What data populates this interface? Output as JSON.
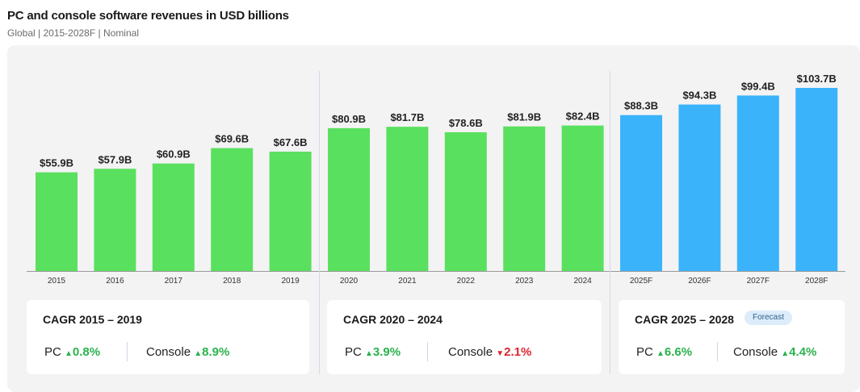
{
  "header": {
    "title": "PC and console software revenues in USD billions",
    "subtitle": "Global | 2015-2028F | Nominal"
  },
  "colors": {
    "actual": "#5ae05f",
    "forecast": "#3ab3fb",
    "up": "#2bb24c",
    "down": "#e0232e"
  },
  "chart_data": {
    "type": "bar",
    "title": "PC and console software revenues in USD billions",
    "subtitle": "Global | 2015-2028F | Nominal",
    "categories": [
      "2015",
      "2016",
      "2017",
      "2018",
      "2019",
      "2020",
      "2021",
      "2022",
      "2023",
      "2024",
      "2025F",
      "2026F",
      "2027F",
      "2028F"
    ],
    "values": [
      55.9,
      57.9,
      60.9,
      69.6,
      67.6,
      80.9,
      81.7,
      78.6,
      81.9,
      82.4,
      88.3,
      94.3,
      99.4,
      103.7
    ],
    "labels": [
      "$55.9B",
      "$57.9B",
      "$60.9B",
      "$69.6B",
      "$67.6B",
      "$80.9B",
      "$81.7B",
      "$78.6B",
      "$81.9B",
      "$82.4B",
      "$88.3B",
      "$94.3B",
      "$99.4B",
      "$103.7B"
    ],
    "forecast": [
      false,
      false,
      false,
      false,
      false,
      false,
      false,
      false,
      false,
      false,
      true,
      true,
      true,
      true
    ],
    "ylabel": "USD billions",
    "ylim": [
      0,
      110
    ],
    "grid": false
  },
  "cards": [
    {
      "title": "CAGR 2015 – 2019",
      "badge": null,
      "metrics": [
        {
          "label": "PC",
          "arrow": "▲",
          "value": "0.8%",
          "direction": "up"
        },
        {
          "label": "Console",
          "arrow": "▲",
          "value": "8.9%",
          "direction": "up"
        }
      ]
    },
    {
      "title": "CAGR 2020 – 2024",
      "badge": null,
      "metrics": [
        {
          "label": "PC",
          "arrow": "▲",
          "value": "3.9%",
          "direction": "up"
        },
        {
          "label": "Console",
          "arrow": "▼",
          "value": "2.1%",
          "direction": "down"
        }
      ]
    },
    {
      "title": "CAGR 2025 – 2028",
      "badge": "Forecast",
      "metrics": [
        {
          "label": "PC",
          "arrow": "▲",
          "value": "6.6%",
          "direction": "up"
        },
        {
          "label": "Console",
          "arrow": "▲",
          "value": "4.4%",
          "direction": "up"
        }
      ]
    }
  ]
}
